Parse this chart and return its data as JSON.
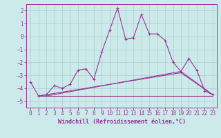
{
  "title": "",
  "xlabel": "Windchill (Refroidissement éolien,°C)",
  "background_color": "#cceaea",
  "grid_color": "#aacccc",
  "line_color": "#993399",
  "xlim": [
    -0.5,
    23.5
  ],
  "ylim": [
    -5.5,
    2.5
  ],
  "yticks": [
    2,
    1,
    0,
    -1,
    -2,
    -3,
    -4,
    -5
  ],
  "xticks": [
    0,
    1,
    2,
    3,
    4,
    5,
    6,
    7,
    8,
    9,
    10,
    11,
    12,
    13,
    14,
    15,
    16,
    17,
    18,
    19,
    20,
    21,
    22,
    23
  ],
  "line1_x": [
    0,
    1,
    2,
    3,
    4,
    5,
    6,
    7,
    8,
    9,
    10,
    11,
    12,
    13,
    14,
    15,
    16,
    17,
    18,
    19,
    20,
    21,
    22,
    23
  ],
  "line1_y": [
    -3.5,
    -4.6,
    -4.5,
    -3.8,
    -4.0,
    -3.7,
    -2.6,
    -2.5,
    -3.3,
    -1.2,
    0.5,
    2.2,
    -0.2,
    -0.1,
    1.7,
    0.2,
    0.2,
    -0.3,
    -2.0,
    -2.7,
    -1.7,
    -2.6,
    -4.2,
    -4.5
  ],
  "line2_x": [
    1,
    2,
    19,
    23
  ],
  "line2_y": [
    -4.6,
    -4.6,
    -2.7,
    -4.5
  ],
  "line3_x": [
    1,
    19,
    23
  ],
  "line3_y": [
    -4.6,
    -2.8,
    -4.5
  ],
  "line4_x": [
    1,
    23
  ],
  "line4_y": [
    -4.6,
    -4.6
  ],
  "tick_fontsize": 5.5,
  "xlabel_fontsize": 6.0,
  "line_width": 0.8,
  "marker_size": 3.0
}
